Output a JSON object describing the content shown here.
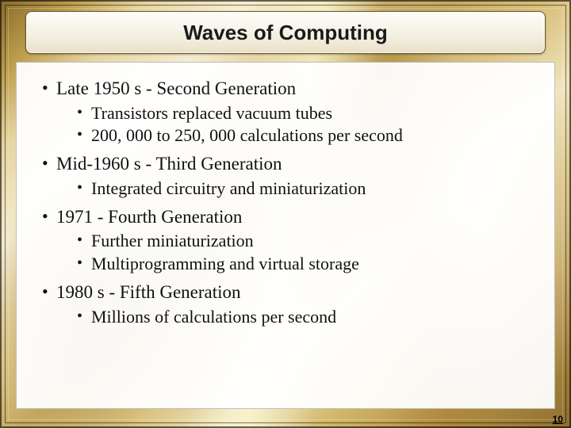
{
  "title": "Waves of Computing",
  "page_number": "10",
  "bullets": [
    {
      "text": "Late 1950 s - Second Generation",
      "sub": [
        "Transistors replaced vacuum tubes",
        "200, 000 to 250, 000 calculations per second"
      ]
    },
    {
      "text": "Mid-1960 s - Third Generation",
      "sub": [
        "Integrated circuitry and miniaturization"
      ]
    },
    {
      "text": "1971 - Fourth Generation",
      "sub": [
        "Further miniaturization",
        "Multiprogramming and virtual storage"
      ]
    },
    {
      "text": "1980 s - Fifth Generation",
      "sub": [
        "Millions of calculations per second"
      ]
    }
  ],
  "style": {
    "slide_width": 720,
    "slide_height": 540,
    "title_fontsize": 26,
    "lvl1_fontsize": 23,
    "lvl2_fontsize": 22,
    "title_bg_gradient": [
      "#fdfdfa",
      "#e9e0c8"
    ],
    "title_border": "#6b5a2a",
    "content_bg": "rgba(255,255,255,0.94)",
    "background_palette": [
      "#8a6a2a",
      "#bfa050",
      "#e6d4a0",
      "#f5ecd0",
      "#d8bf7a",
      "#8f6f2e"
    ],
    "font_title": "Arial",
    "font_body": "Times New Roman"
  }
}
